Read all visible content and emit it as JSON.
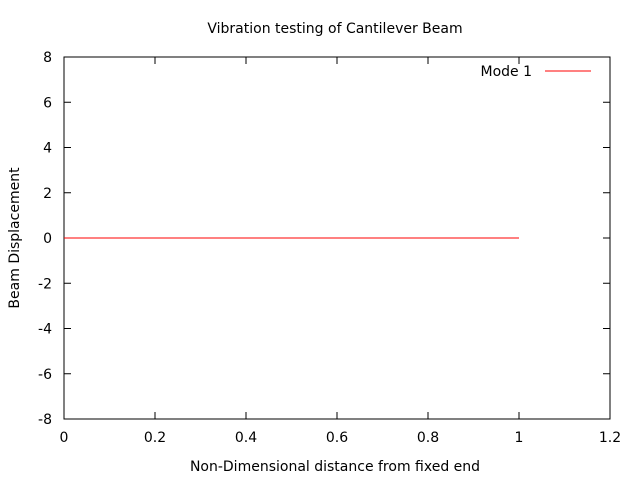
{
  "chart_data": {
    "type": "line",
    "title": "Vibration testing of Cantilever Beam",
    "xlabel": "Non-Dimensional distance from fixed end",
    "ylabel": "Beam Displacement",
    "xlim": [
      0,
      1.2
    ],
    "ylim": [
      -8,
      8
    ],
    "xticks": [
      0,
      0.2,
      0.4,
      0.6,
      0.8,
      1,
      1.2
    ],
    "xtick_labels": [
      "0",
      "0.2",
      "0.4",
      "0.6",
      "0.8",
      "1",
      "1.2"
    ],
    "yticks": [
      -8,
      -6,
      -4,
      -2,
      0,
      2,
      4,
      6,
      8
    ],
    "ytick_labels": [
      "-8",
      "-6",
      "-4",
      "-2",
      "0",
      "2",
      "4",
      "6",
      "8"
    ],
    "grid": false,
    "legend_position": "top-right",
    "series": [
      {
        "name": "Mode 1",
        "color": "#ff0000",
        "x": [
          0,
          1
        ],
        "y": [
          0,
          0
        ]
      }
    ]
  }
}
